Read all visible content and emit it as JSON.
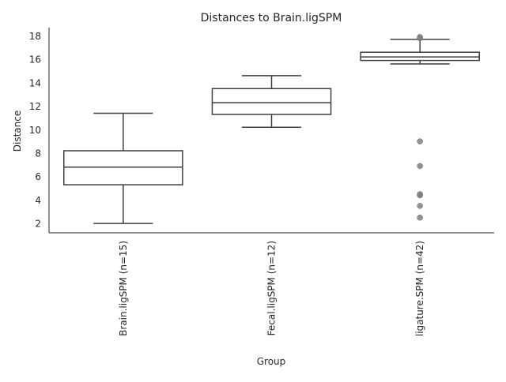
{
  "chart_data": {
    "type": "box",
    "title": "Distances to Brain.ligSPM",
    "xlabel": "Group",
    "ylabel": "Distance",
    "ylim": [
      1.2,
      18.7
    ],
    "yticks": [
      2,
      4,
      6,
      8,
      10,
      12,
      14,
      16,
      18
    ],
    "grid": false,
    "categories": [
      "Brain.ligSPM (n=15)",
      "Fecal.ligSPM (n=12)",
      "ligature.SPM (n=42)"
    ],
    "boxes": [
      {
        "category": "Brain.ligSPM (n=15)",
        "whisker_low": 2.0,
        "q1": 5.3,
        "median": 6.8,
        "q3": 8.2,
        "whisker_high": 11.4,
        "outliers": []
      },
      {
        "category": "Fecal.ligSPM (n=12)",
        "whisker_low": 10.2,
        "q1": 11.3,
        "median": 12.3,
        "q3": 13.5,
        "whisker_high": 14.6,
        "outliers": []
      },
      {
        "category": "ligature.SPM (n=42)",
        "whisker_low": 15.6,
        "q1": 15.9,
        "median": 16.2,
        "q3": 16.6,
        "whisker_high": 17.7,
        "outliers": [
          2.5,
          3.5,
          4.4,
          4.5,
          6.9,
          9.0,
          17.8,
          17.9
        ]
      }
    ],
    "colors": {
      "box_edge": "#3f3f3f",
      "box_fill": "#ffffff",
      "outlier": "#808080",
      "axis": "#262626"
    }
  }
}
